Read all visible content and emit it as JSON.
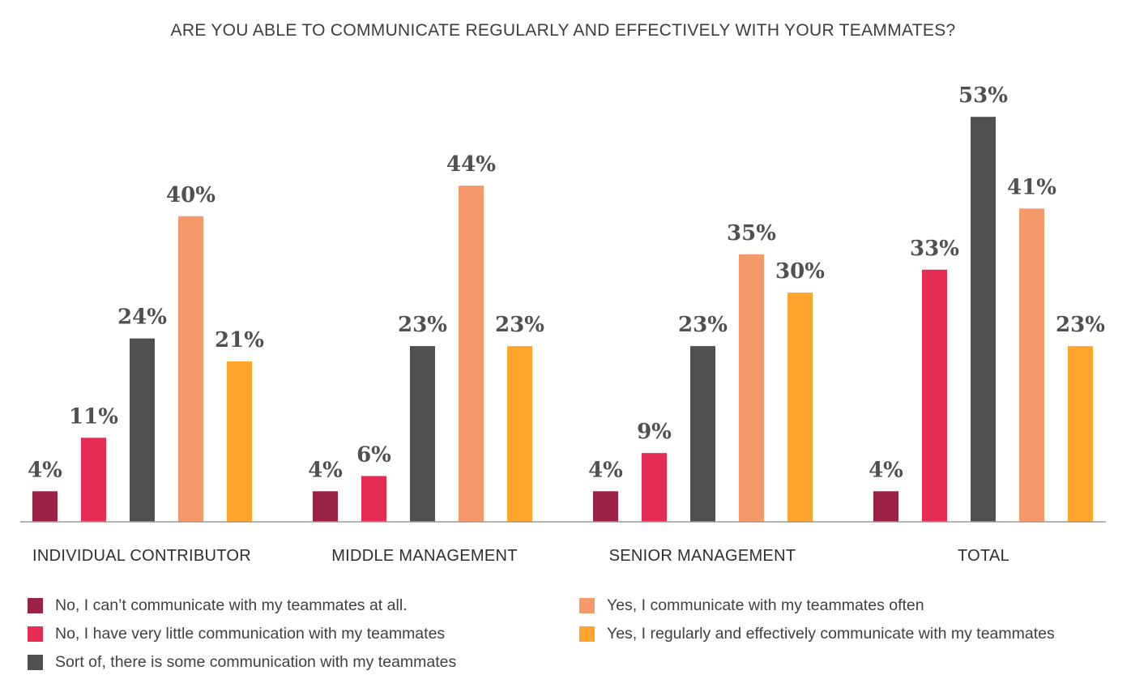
{
  "chart_data": {
    "type": "bar",
    "title": "ARE YOU ABLE TO COMMUNICATE REGULARLY AND EFFECTIVELY WITH YOUR TEAMMATES?",
    "categories": [
      "INDIVIDUAL CONTRIBUTOR",
      "MIDDLE MANAGEMENT",
      "SENIOR MANAGEMENT",
      "TOTAL"
    ],
    "series": [
      {
        "name": "No, I can’t communicate with my teammates at all.",
        "color": "#9b2145",
        "values": [
          4,
          4,
          4,
          4
        ],
        "labels": [
          "4%",
          "4%",
          "4%",
          "4%"
        ]
      },
      {
        "name": "No, I have very little communication with my teammates",
        "color": "#e52c55",
        "values": [
          11,
          6,
          9,
          33
        ],
        "labels": [
          "11%",
          "6%",
          "9%",
          "33%"
        ]
      },
      {
        "name": "Sort of, there is some communication with my teammates",
        "color": "#505050",
        "values": [
          24,
          23,
          23,
          53
        ],
        "labels": [
          "24%",
          "23%",
          "23%",
          "53%"
        ]
      },
      {
        "name": "Yes, I communicate with my teammates often",
        "color": "#f5996a",
        "values": [
          40,
          44,
          35,
          41
        ],
        "labels": [
          "40%",
          "44%",
          "35%",
          "41%"
        ]
      },
      {
        "name": "Yes, I regularly and effectively communicate with my teammates",
        "color": "#ffa42d",
        "values": [
          21,
          23,
          30,
          23
        ],
        "labels": [
          "21%",
          "23%",
          "30%",
          "23%"
        ]
      }
    ],
    "ylim": [
      0,
      60
    ],
    "xlabel": "",
    "ylabel": "",
    "grid": false,
    "legend_position": "bottom"
  }
}
